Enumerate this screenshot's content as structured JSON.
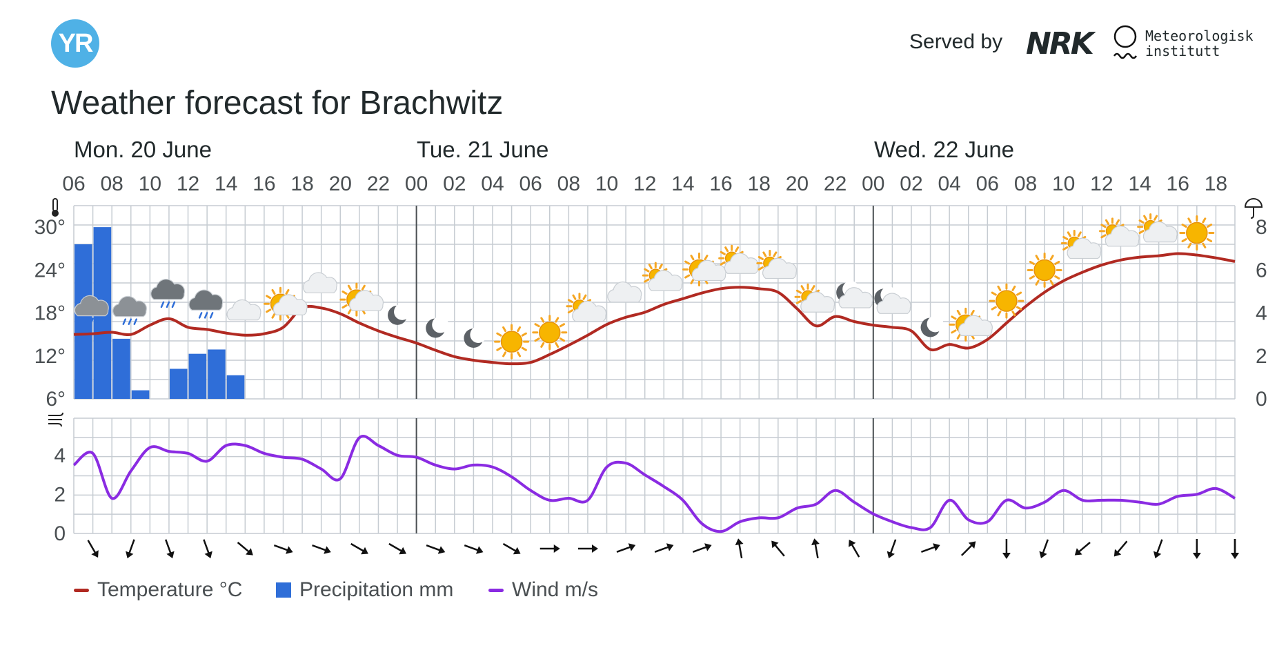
{
  "header": {
    "logo_text": "YR",
    "served_by": "Served by",
    "nrk_logo_text": "NRK",
    "met_line1": "Meteorologisk",
    "met_line2": "institutt"
  },
  "title": "Weather forecast for Brachwitz",
  "days": [
    "Mon. 20 June",
    "Tue. 21 June",
    "Wed. 22 June"
  ],
  "legend": {
    "temperature": "Temperature °C",
    "precipitation": "Precipitation mm",
    "wind": "Wind m/s"
  },
  "colors": {
    "temperature": "#b12a22",
    "precipitation": "#2f6ed8",
    "wind": "#8a2be2",
    "grid": "#c6ccd2",
    "logo": "#4fb1e6"
  },
  "chart_data": {
    "type": "line",
    "hours": [
      "06",
      "07",
      "08",
      "09",
      "10",
      "11",
      "12",
      "13",
      "14",
      "15",
      "16",
      "17",
      "18",
      "19",
      "20",
      "21",
      "22",
      "23",
      "00",
      "01",
      "02",
      "03",
      "04",
      "05",
      "06",
      "07",
      "08",
      "09",
      "10",
      "11",
      "12",
      "13",
      "14",
      "15",
      "16",
      "17",
      "18",
      "19",
      "20",
      "21",
      "22",
      "23",
      "00",
      "01",
      "02",
      "03",
      "04",
      "05",
      "06",
      "07",
      "08",
      "09",
      "10",
      "11",
      "12",
      "13",
      "14",
      "15",
      "16",
      "17",
      "18",
      "19"
    ],
    "x_tick_labels": [
      "06",
      "08",
      "10",
      "12",
      "14",
      "16",
      "18",
      "20",
      "22",
      "00",
      "02",
      "04",
      "06",
      "08",
      "10",
      "12",
      "14",
      "16",
      "18",
      "20",
      "22",
      "00",
      "02",
      "04",
      "06",
      "08",
      "10",
      "12",
      "14",
      "16",
      "18"
    ],
    "temperature_axis": {
      "ticks": [
        "30°",
        "24°",
        "18°",
        "12°",
        "6°"
      ],
      "ylim": [
        6,
        33
      ]
    },
    "precipitation_axis": {
      "ticks": [
        "8",
        "6",
        "4",
        "2",
        "0"
      ],
      "ylim": [
        0,
        9
      ]
    },
    "wind_axis": {
      "ticks": [
        "4",
        "2",
        "0"
      ],
      "ylim": [
        0,
        5.9
      ]
    },
    "series": [
      {
        "name": "Temperature °C",
        "values": [
          15,
          15.1,
          15.3,
          15,
          16.3,
          17.2,
          16,
          15.7,
          15.2,
          14.9,
          15.1,
          16,
          18.7,
          18.7,
          17.9,
          16.6,
          15.5,
          14.6,
          13.8,
          12.8,
          11.9,
          11.4,
          11.1,
          10.9,
          11.1,
          12.2,
          13.5,
          14.9,
          16.4,
          17.4,
          18.1,
          19.2,
          20,
          20.8,
          21.4,
          21.6,
          21.4,
          20.9,
          18.6,
          16.2,
          17.5,
          16.8,
          16.3,
          16,
          15.5,
          12.9,
          13.6,
          13.1,
          14.3,
          16.6,
          18.9,
          20.9,
          22.5,
          23.7,
          24.7,
          25.4,
          25.8,
          26,
          26.3,
          26.1,
          25.7,
          25.2
        ]
      },
      {
        "name": "Precipitation mm",
        "values": [
          7.2,
          8,
          2.8,
          0.4,
          0,
          1.4,
          2.1,
          2.3,
          1.1,
          0,
          0,
          0,
          0,
          0,
          0,
          0,
          0,
          0,
          0,
          0,
          0,
          0,
          0,
          0,
          0,
          0,
          0,
          0,
          0,
          0,
          0,
          0,
          0,
          0,
          0,
          0,
          0,
          0,
          0,
          0,
          0,
          0,
          0,
          0,
          0,
          0,
          0,
          0,
          0,
          0,
          0,
          0,
          0,
          0,
          0,
          0,
          0,
          0,
          0,
          0,
          0,
          0
        ]
      },
      {
        "name": "Wind m/s",
        "values": [
          3.5,
          4.1,
          1.8,
          3.2,
          4.4,
          4.2,
          4.1,
          3.7,
          4.5,
          4.5,
          4.1,
          3.9,
          3.8,
          3.3,
          2.8,
          4.9,
          4.5,
          4.0,
          3.9,
          3.5,
          3.3,
          3.5,
          3.4,
          2.9,
          2.2,
          1.7,
          1.8,
          1.7,
          3.4,
          3.6,
          3.0,
          2.4,
          1.7,
          0.5,
          0.1,
          0.6,
          0.8,
          0.8,
          1.3,
          1.5,
          2.2,
          1.6,
          1.0,
          0.6,
          0.3,
          0.3,
          1.7,
          0.7,
          0.6,
          1.7,
          1.3,
          1.6,
          2.2,
          1.7,
          1.7,
          1.7,
          1.6,
          1.5,
          1.9,
          2.0,
          2.3,
          1.8
        ]
      }
    ],
    "wind_directions_deg": [
      150,
      200,
      160,
      160,
      130,
      110,
      110,
      120,
      120,
      110,
      110,
      120,
      90,
      90,
      70,
      70,
      70,
      350,
      320,
      350,
      330,
      200,
      70,
      45,
      180,
      200,
      230,
      220,
      200,
      180,
      180
    ],
    "weather_icons": [
      {
        "hour": "07",
        "icon": "rain-cloud"
      },
      {
        "hour": "09",
        "icon": "light-rain-cloud"
      },
      {
        "hour": "11",
        "icon": "dark-rain-cloud"
      },
      {
        "hour": "13",
        "icon": "dark-rain-cloud"
      },
      {
        "hour": "15",
        "icon": "cloud"
      },
      {
        "hour": "17",
        "icon": "partly-sunny"
      },
      {
        "hour": "19",
        "icon": "cloud"
      },
      {
        "hour": "21",
        "icon": "partly-sunny"
      },
      {
        "hour": "23",
        "icon": "moon"
      },
      {
        "hour": "01",
        "icon": "moon"
      },
      {
        "hour": "03",
        "icon": "moon"
      },
      {
        "hour": "05",
        "icon": "sun"
      },
      {
        "hour": "07",
        "icon": "sun"
      },
      {
        "hour": "09",
        "icon": "partly-cloudy"
      },
      {
        "hour": "11",
        "icon": "cloud"
      },
      {
        "hour": "13",
        "icon": "partly-cloudy"
      },
      {
        "hour": "15",
        "icon": "partly-sunny"
      },
      {
        "hour": "17",
        "icon": "partly-cloudy"
      },
      {
        "hour": "19",
        "icon": "partly-cloudy"
      },
      {
        "hour": "21",
        "icon": "partly-cloudy"
      },
      {
        "hour": "23",
        "icon": "night-cloudy"
      },
      {
        "hour": "01",
        "icon": "night-cloudy"
      },
      {
        "hour": "03",
        "icon": "moon"
      },
      {
        "hour": "05",
        "icon": "partly-sunny"
      },
      {
        "hour": "07",
        "icon": "sun"
      },
      {
        "hour": "09",
        "icon": "sun"
      },
      {
        "hour": "11",
        "icon": "partly-cloudy"
      },
      {
        "hour": "13",
        "icon": "partly-cloudy"
      },
      {
        "hour": "15",
        "icon": "partly-cloudy"
      },
      {
        "hour": "17",
        "icon": "sun"
      }
    ],
    "axis_icons": [
      "thermometer-icon",
      "umbrella-icon",
      "wind-icon"
    ],
    "grid": true,
    "legend_position": "bottom-left"
  }
}
